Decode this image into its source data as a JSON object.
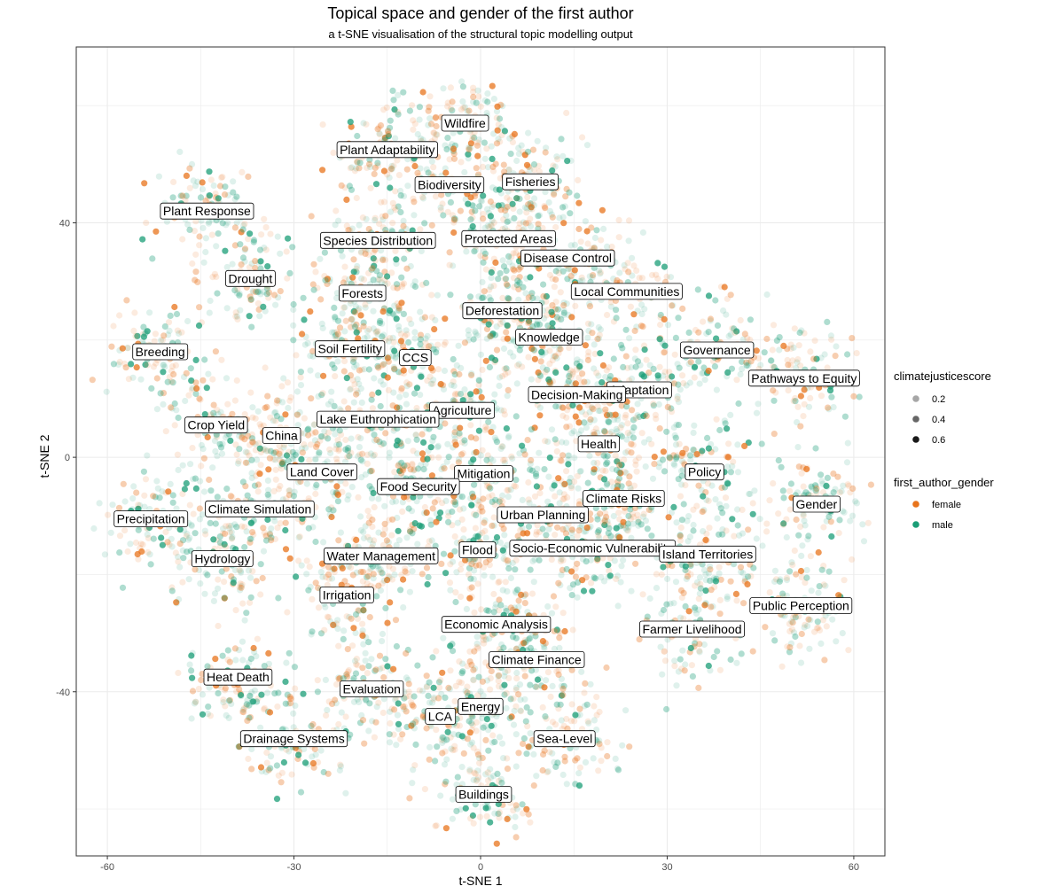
{
  "chart_data": {
    "type": "scatter",
    "title": "Topical space and gender of the first author",
    "subtitle": "a t-SNE visualisation of the structural topic modelling output",
    "xlabel": "t-SNE 1",
    "ylabel": "t-SNE 2",
    "xlim": [
      -65,
      65
    ],
    "ylim": [
      -68,
      70
    ],
    "x_ticks": [
      -60,
      -30,
      0,
      30,
      60
    ],
    "y_ticks": [
      -40,
      0,
      40
    ],
    "grid": true,
    "legend_position": "right",
    "legends": [
      {
        "title": "climatejusticescore",
        "entries": [
          {
            "label": "0.2",
            "value": 0.2
          },
          {
            "label": "0.4",
            "value": 0.4
          },
          {
            "label": "0.6",
            "value": 0.6
          }
        ]
      },
      {
        "title": "first_author_gender",
        "entries": [
          {
            "label": "female",
            "color": "#E8741C"
          },
          {
            "label": "male",
            "color": "#1B9E77"
          }
        ]
      }
    ],
    "colors": {
      "female": "#E8741C",
      "male": "#1B9E77"
    },
    "topics": [
      {
        "label": "Wildfire",
        "x": -2.5,
        "y": 57
      },
      {
        "label": "Plant Adaptability",
        "x": -15,
        "y": 52.5
      },
      {
        "label": "Fisheries",
        "x": 8,
        "y": 47
      },
      {
        "label": "Biodiversity",
        "x": -5,
        "y": 46.5
      },
      {
        "label": "Plant Response",
        "x": -44,
        "y": 42
      },
      {
        "label": "Species Distribution",
        "x": -16.5,
        "y": 37
      },
      {
        "label": "Protected Areas",
        "x": 4.5,
        "y": 37.3
      },
      {
        "label": "Disease Control",
        "x": 14,
        "y": 34
      },
      {
        "label": "Drought",
        "x": -37,
        "y": 30.5
      },
      {
        "label": "Forests",
        "x": -19,
        "y": 28
      },
      {
        "label": "Local Communities",
        "x": 23.5,
        "y": 28.3
      },
      {
        "label": "Deforestation",
        "x": 3.5,
        "y": 25
      },
      {
        "label": "Knowledge",
        "x": 11,
        "y": 20.5
      },
      {
        "label": "Breeding",
        "x": -51.5,
        "y": 18
      },
      {
        "label": "Soil Fertility",
        "x": -21,
        "y": 18.5
      },
      {
        "label": "CCS",
        "x": -10.5,
        "y": 17
      },
      {
        "label": "Governance",
        "x": 38,
        "y": 18.3
      },
      {
        "label": "Pathways to Equity",
        "x": 52,
        "y": 13.5
      },
      {
        "label": "Adaptation",
        "x": 25.5,
        "y": 11.5
      },
      {
        "label": "Decision-Making",
        "x": 15.5,
        "y": 10.7
      },
      {
        "label": "Agriculture",
        "x": -3,
        "y": 8
      },
      {
        "label": "Lake Euthrophication",
        "x": -16.5,
        "y": 6.5
      },
      {
        "label": "Crop Yield",
        "x": -42.5,
        "y": 5.5
      },
      {
        "label": "China",
        "x": -32,
        "y": 3.7
      },
      {
        "label": "Health",
        "x": 19,
        "y": 2.3
      },
      {
        "label": "Land Cover",
        "x": -25.5,
        "y": -2.5
      },
      {
        "label": "Mitigation",
        "x": 0.5,
        "y": -2.8
      },
      {
        "label": "Policy",
        "x": 36,
        "y": -2.5
      },
      {
        "label": "Food Security",
        "x": -10,
        "y": -5
      },
      {
        "label": "Climate Risks",
        "x": 23,
        "y": -7
      },
      {
        "label": "Gender",
        "x": 54,
        "y": -8
      },
      {
        "label": "Urban Planning",
        "x": 10,
        "y": -9.8
      },
      {
        "label": "Climate Simulation",
        "x": -35.5,
        "y": -8.8
      },
      {
        "label": "Precipitation",
        "x": -53,
        "y": -10.5
      },
      {
        "label": "Flood",
        "x": -0.5,
        "y": -15.8
      },
      {
        "label": "Socio-Economic Vulnerability",
        "x": 18,
        "y": -15.5
      },
      {
        "label": "Island Territories",
        "x": 36.5,
        "y": -16.5
      },
      {
        "label": "Water Management",
        "x": -16,
        "y": -16.8
      },
      {
        "label": "Hydrology",
        "x": -41.5,
        "y": -17.3
      },
      {
        "label": "Irrigation",
        "x": -21.5,
        "y": -23.5
      },
      {
        "label": "Public Perception",
        "x": 51.5,
        "y": -25.3
      },
      {
        "label": "Economic Analysis",
        "x": 2.5,
        "y": -28.5
      },
      {
        "label": "Farmer Livelihood",
        "x": 34,
        "y": -29.3
      },
      {
        "label": "Climate Finance",
        "x": 9,
        "y": -34.5
      },
      {
        "label": "Heat Death",
        "x": -39,
        "y": -37.5
      },
      {
        "label": "Evaluation",
        "x": -17.5,
        "y": -39.5
      },
      {
        "label": "Energy",
        "x": 0,
        "y": -42.5
      },
      {
        "label": "LCA",
        "x": -6.5,
        "y": -44.2
      },
      {
        "label": "Sea-Level",
        "x": 13.5,
        "y": -48
      },
      {
        "label": "Drainage Systems",
        "x": -30,
        "y": -48
      },
      {
        "label": "Buildings",
        "x": 0.5,
        "y": -57.5
      }
    ]
  }
}
